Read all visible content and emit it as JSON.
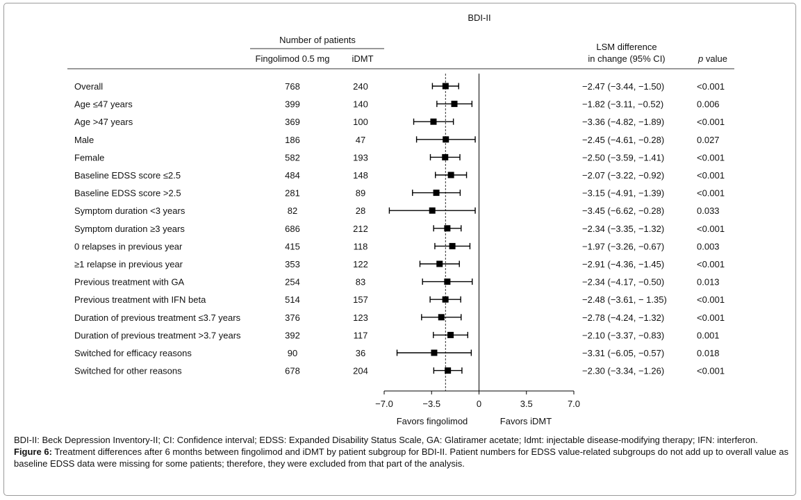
{
  "chart_data": {
    "type": "forest",
    "title": "BDI-II",
    "header": {
      "patients_group": "Number of patients",
      "col_fingolimod": "Fingolimod 0.5 mg",
      "col_idmt": "iDMT",
      "col_lsm_line1": "LSM difference",
      "col_lsm_line2": "in change (95% CI)",
      "col_p_italic": "p",
      "col_p_rest": " value"
    },
    "rows": [
      {
        "label": "Overall",
        "fingolimod_n": "768",
        "idmt_n": "240",
        "estimate": -2.47,
        "lower": -3.44,
        "upper": -1.5,
        "ci_text": "−2.47 (−3.44, −1.50)",
        "p": "<0.001"
      },
      {
        "label": "Age ≤47 years",
        "fingolimod_n": "399",
        "idmt_n": "140",
        "estimate": -1.82,
        "lower": -3.11,
        "upper": -0.52,
        "ci_text": "−1.82 (−3.11, −0.52)",
        "p": "0.006"
      },
      {
        "label": "Age >47 years",
        "fingolimod_n": "369",
        "idmt_n": "100",
        "estimate": -3.36,
        "lower": -4.82,
        "upper": -1.89,
        "ci_text": "−3.36 (−4.82, −1.89)",
        "p": "<0.001"
      },
      {
        "label": "Male",
        "fingolimod_n": "186",
        "idmt_n": "47",
        "estimate": -2.45,
        "lower": -4.61,
        "upper": -0.28,
        "ci_text": "−2.45 (−4.61, −0.28)",
        "p": "0.027"
      },
      {
        "label": "Female",
        "fingolimod_n": "582",
        "idmt_n": "193",
        "estimate": -2.5,
        "lower": -3.59,
        "upper": -1.41,
        "ci_text": "−2.50 (−3.59, −1.41)",
        "p": "<0.001"
      },
      {
        "label": "Baseline EDSS score ≤2.5",
        "fingolimod_n": "484",
        "idmt_n": "148",
        "estimate": -2.07,
        "lower": -3.22,
        "upper": -0.92,
        "ci_text": "−2.07 (−3.22, −0.92)",
        "p": "<0.001"
      },
      {
        "label": "Baseline EDSS score >2.5",
        "fingolimod_n": "281",
        "idmt_n": "89",
        "estimate": -3.15,
        "lower": -4.91,
        "upper": -1.39,
        "ci_text": "−3.15 (−4.91, −1.39)",
        "p": "<0.001"
      },
      {
        "label": "Symptom duration <3 years",
        "fingolimod_n": "82",
        "idmt_n": "28",
        "estimate": -3.45,
        "lower": -6.62,
        "upper": -0.28,
        "ci_text": "−3.45 (−6.62, −0.28)",
        "p": "0.033"
      },
      {
        "label": "Symptom duration ≥3 years",
        "fingolimod_n": "686",
        "idmt_n": "212",
        "estimate": -2.34,
        "lower": -3.35,
        "upper": -1.32,
        "ci_text": "−2.34 (−3.35, −1.32)",
        "p": "<0.001"
      },
      {
        "label": "0 relapses in previous year",
        "fingolimod_n": "415",
        "idmt_n": "118",
        "estimate": -1.97,
        "lower": -3.26,
        "upper": -0.67,
        "ci_text": "−1.97 (−3.26, −0.67)",
        "p": "0.003"
      },
      {
        "label": "≥1 relapse in previous year",
        "fingolimod_n": "353",
        "idmt_n": "122",
        "estimate": -2.91,
        "lower": -4.36,
        "upper": -1.45,
        "ci_text": "−2.91 (−4.36, −1.45)",
        "p": "<0.001"
      },
      {
        "label": "Previous treatment with GA",
        "fingolimod_n": "254",
        "idmt_n": "83",
        "estimate": -2.34,
        "lower": -4.17,
        "upper": -0.5,
        "ci_text": "−2.34 (−4.17, −0.50)",
        "p": "0.013"
      },
      {
        "label": "Previous treatment with IFN beta",
        "fingolimod_n": "514",
        "idmt_n": "157",
        "estimate": -2.48,
        "lower": -3.61,
        "upper": -1.35,
        "ci_text": "−2.48 (−3.61, − 1.35)",
        "p": "<0.001"
      },
      {
        "label": "Duration of previous treatment ≤3.7 years",
        "fingolimod_n": "376",
        "idmt_n": "123",
        "estimate": -2.78,
        "lower": -4.24,
        "upper": -1.32,
        "ci_text": "−2.78 (−4.24, −1.32)",
        "p": "<0.001"
      },
      {
        "label": "Duration of previous treatment >3.7 years",
        "fingolimod_n": "392",
        "idmt_n": "117",
        "estimate": -2.1,
        "lower": -3.37,
        "upper": -0.83,
        "ci_text": "−2.10 (−3.37, −0.83)",
        "p": "0.001"
      },
      {
        "label": "Switched for efficacy reasons",
        "fingolimod_n": "90",
        "idmt_n": "36",
        "estimate": -3.31,
        "lower": -6.05,
        "upper": -0.57,
        "ci_text": "−3.31 (−6.05, −0.57)",
        "p": "0.018"
      },
      {
        "label": "Switched for other reasons",
        "fingolimod_n": "678",
        "idmt_n": "204",
        "estimate": -2.3,
        "lower": -3.34,
        "upper": -1.26,
        "ci_text": "−2.30 (−3.34, −1.26)",
        "p": "<0.001"
      }
    ],
    "x_axis": {
      "range": [
        -7.0,
        7.0
      ],
      "ticks": [
        -7.0,
        -3.5,
        0,
        3.5,
        7.0
      ],
      "tick_labels": [
        "−7.0",
        "−3.5",
        "0",
        "3.5",
        "7.0"
      ],
      "label_left": "Favors fingolimod",
      "label_right": "Favors iDMT"
    },
    "reference_line": -2.47,
    "colors": {
      "marker": "#000000",
      "line": "#000000",
      "border": "#9a9a9a"
    }
  },
  "caption": {
    "abbreviations": "BDI-II: Beck Depression Inventory-II; CI: Confidence interval; EDSS: Expanded Disability Status Scale, GA: Glatiramer acetate; Idmt: injectable disease-modifying therapy; IFN: interferon.",
    "figure_label": "Figure 6:",
    "figure_text": " Treatment differences after 6 months between fingolimod and iDMT by patient subgroup for BDI-II. Patient numbers for EDSS value-related subgroups do not add up to overall value as baseline EDSS data were missing for some patients; therefore, they were excluded from that part of the analysis."
  }
}
